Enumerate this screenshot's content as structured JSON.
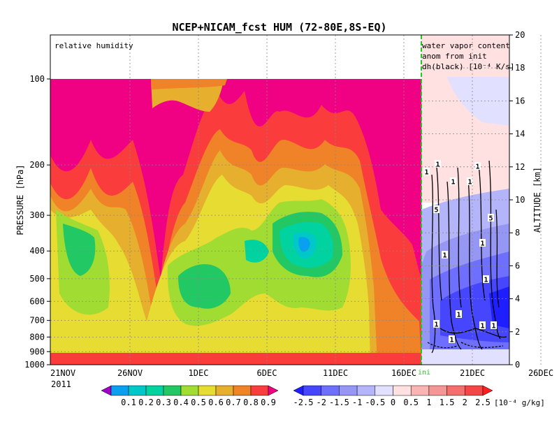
{
  "chart_data": {
    "type": "heatmap",
    "title": "NCEP+NICAM_fcst HUM (72-80E,8S-EQ)",
    "left_panel_label": "relative humidity",
    "right_panel_label": [
      "water vapor content",
      "anom from init",
      "dh(black) [10⁻⁴ K/s]"
    ],
    "ylabel_left": "PRESSURE [hPa]",
    "ylabel_right": "ALTITUDE [km]",
    "init_label": "ini",
    "year_label": "2011",
    "x_ticks": [
      "21NOV",
      "26NOV",
      "1DEC",
      "6DEC",
      "11DEC",
      "16DEC",
      "21DEC",
      "26DEC"
    ],
    "pressure_ticks": [
      "100",
      "200",
      "300",
      "400",
      "500",
      "600",
      "700",
      "800",
      "900",
      "1000"
    ],
    "altitude_ticks": [
      "0",
      "2",
      "4",
      "6",
      "8",
      "10",
      "12",
      "14",
      "16",
      "18",
      "20"
    ],
    "altitude_range_km": [
      0,
      20
    ],
    "pressure_range_hpa": [
      1000,
      100
    ],
    "grid": true,
    "colorbar_left": {
      "labels": [
        "0.1",
        "0.2",
        "0.3",
        "0.4",
        "0.5",
        "0.6",
        "0.7",
        "0.8",
        "0.9"
      ],
      "colors": [
        "#a000c8",
        "#0aa0f0",
        "#00c8c8",
        "#00d2a0",
        "#22c864",
        "#a0dc32",
        "#e6dc32",
        "#e6af2d",
        "#f08228",
        "#fa3c3c",
        "#f00082"
      ]
    },
    "colorbar_right": {
      "labels": [
        "-2.5",
        "-2",
        "-1.5",
        "-1",
        "-0.5",
        "0",
        "0.5",
        "1",
        "1.5",
        "2",
        "2.5"
      ],
      "unit": "[10⁻⁴ g/kg]",
      "colors": [
        "#1e1eff",
        "#4646ff",
        "#6e6eff",
        "#9696f5",
        "#b4b4fa",
        "#e1e1ff",
        "#ffe1e1",
        "#fab4b4",
        "#f59696",
        "#f56e6e",
        "#f54646",
        "#ff1e1e"
      ]
    },
    "contour_labels": [
      "1",
      "1",
      "5",
      "1",
      "1",
      "1",
      "1",
      "1",
      "1",
      "5",
      "1",
      "1",
      "1",
      "1",
      "1"
    ]
  }
}
